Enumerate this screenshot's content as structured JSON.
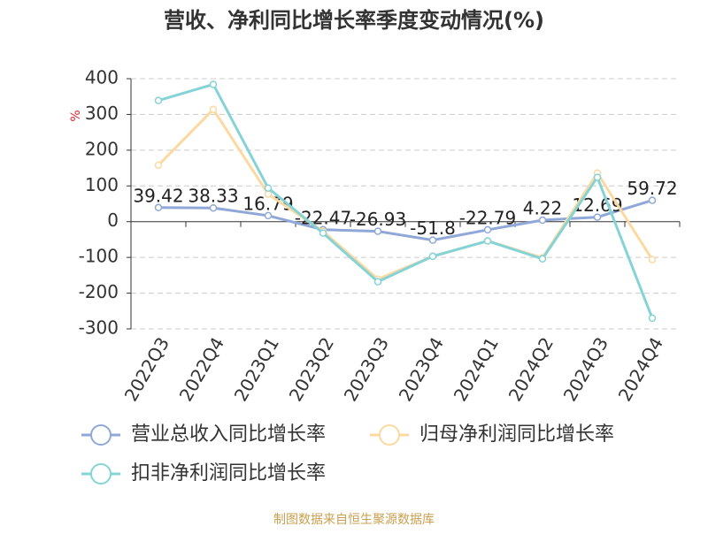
{
  "chart_data": {
    "type": "line",
    "title": "营收、净利同比增长率季度变动情况(%)",
    "y_label": "%",
    "source": "制图数据来自恒生聚源数据库",
    "categories": [
      "2022Q3",
      "2022Q4",
      "2023Q1",
      "2023Q2",
      "2023Q3",
      "2023Q4",
      "2024Q1",
      "2024Q2",
      "2024Q3",
      "2024Q4"
    ],
    "series": [
      {
        "name": "营业总收入同比增长率",
        "color": "#8fa8d8",
        "values": [
          39.42,
          38.33,
          16.79,
          -22.47,
          -26.93,
          -51.8,
          -22.79,
          4.22,
          12.69,
          59.72
        ],
        "show_labels": true
      },
      {
        "name": "归母净利润同比增长率",
        "color": "#fbd9a0",
        "values": [
          158,
          314,
          77,
          -27,
          -161,
          -97,
          -54,
          -101,
          136,
          -106
        ]
      },
      {
        "name": "扣非净利润同比增长率",
        "color": "#84d3d6",
        "values": [
          339,
          384,
          94,
          -32,
          -168,
          -97,
          -54,
          -104,
          124,
          -270
        ]
      }
    ],
    "ylim": [
      -300,
      400
    ],
    "yticks": [
      -300,
      -200,
      -100,
      0,
      100,
      200,
      300,
      400
    ],
    "grid": true
  }
}
